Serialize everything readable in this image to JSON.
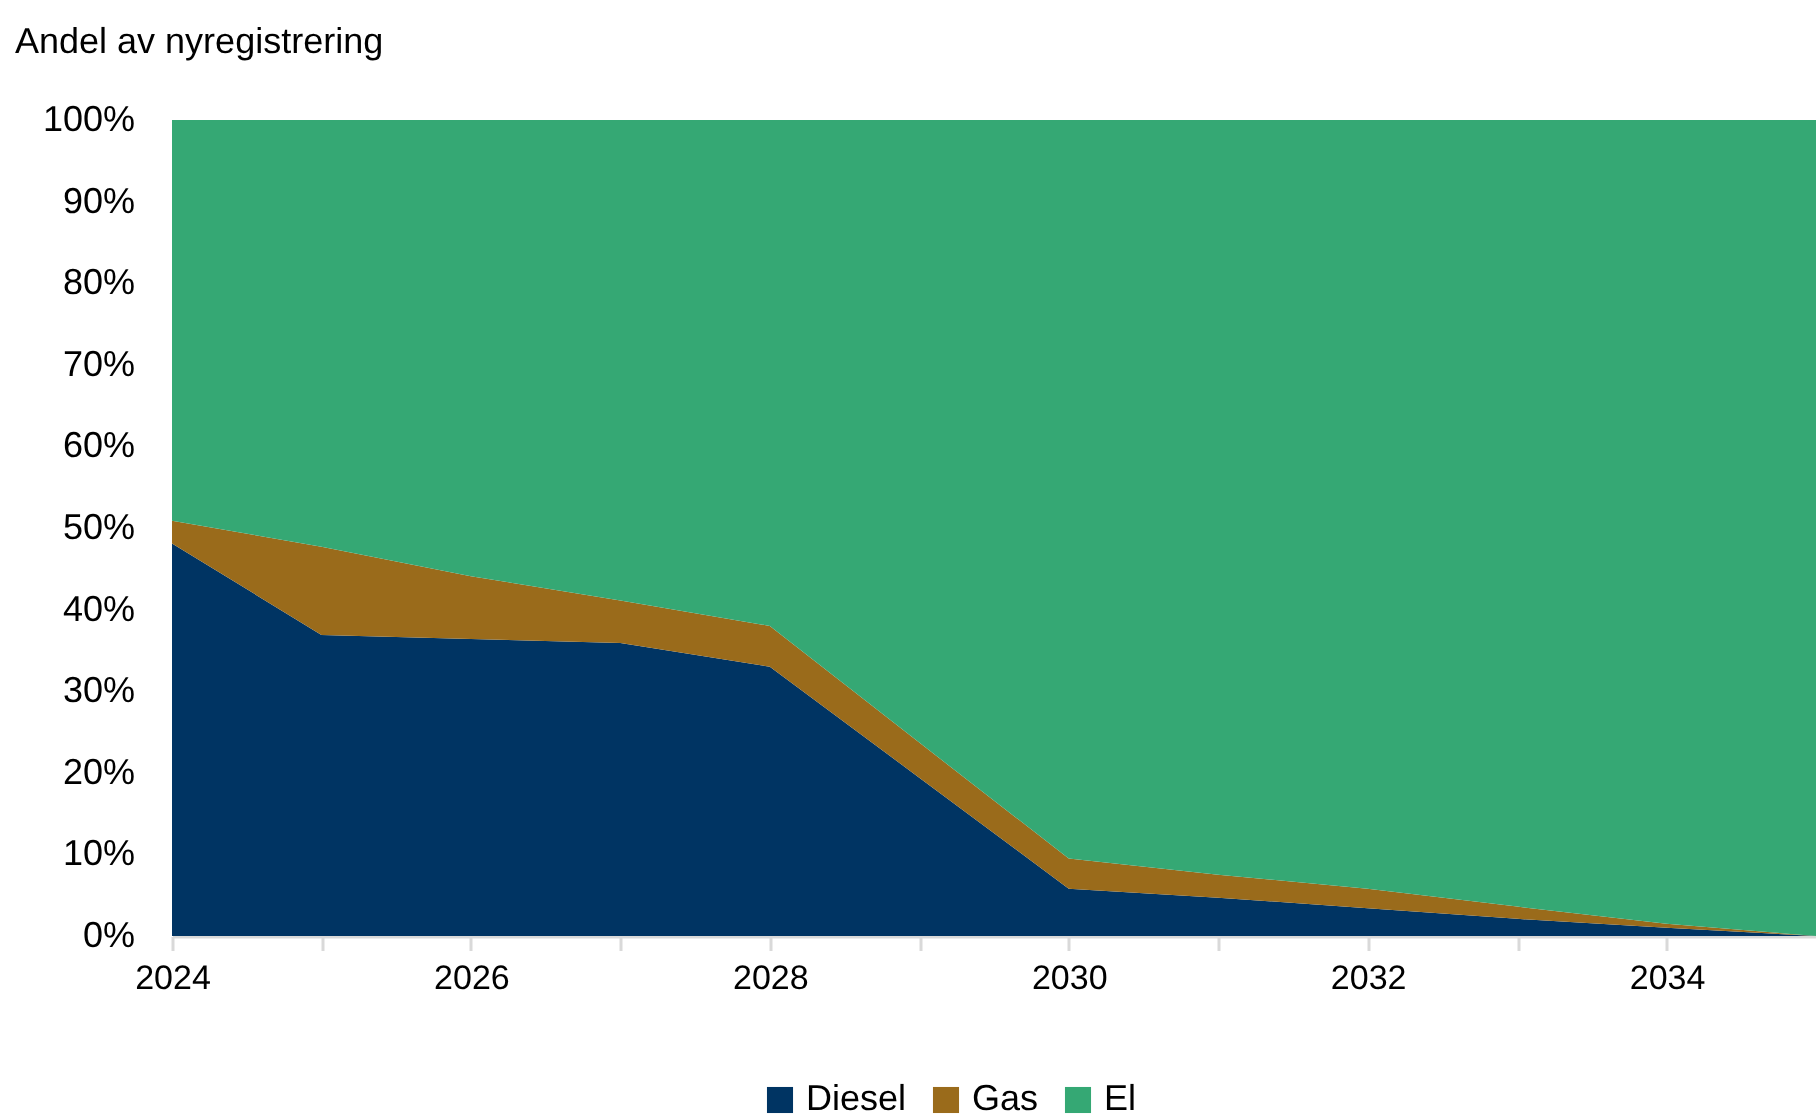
{
  "chart_data": {
    "type": "area",
    "stacked": true,
    "ylabel": "Andel av nyregistrering",
    "x": [
      2024,
      2025,
      2026,
      2027,
      2028,
      2029,
      2030,
      2031,
      2032,
      2033,
      2034,
      2035
    ],
    "series": [
      {
        "name": "Diesel",
        "color": "#003463",
        "values": [
          48.1,
          36.9,
          36.4,
          35.9,
          33.0,
          19.4,
          5.8,
          4.7,
          3.4,
          2.1,
          1.0,
          0
        ]
      },
      {
        "name": "Gas",
        "color": "#9a6b1b",
        "values": [
          2.8,
          10.8,
          7.7,
          5.2,
          5.0,
          4.3,
          3.7,
          2.8,
          2.4,
          1.5,
          0.5,
          0
        ]
      },
      {
        "name": "El",
        "color": "#35a874",
        "values": [
          49.1,
          52.3,
          55.9,
          58.9,
          62.0,
          76.3,
          90.5,
          92.5,
          94.2,
          96.4,
          98.5,
          100
        ]
      }
    ],
    "xlim": [
      2024,
      2035
    ],
    "xticks": [
      2024,
      {
        "value": 2025,
        "label": null
      },
      2026,
      {
        "value": 2027,
        "label": null
      },
      2028,
      {
        "value": 2029,
        "label": null
      },
      2030,
      {
        "value": 2031,
        "label": null
      },
      2032,
      {
        "value": 2033,
        "label": null
      },
      2034
    ],
    "ylim": [
      0,
      100
    ],
    "yticks": [
      {
        "value": 0,
        "label": "0%"
      },
      {
        "value": 10,
        "label": "10%"
      },
      {
        "value": 20,
        "label": "20%"
      },
      {
        "value": 30,
        "label": "30%"
      },
      {
        "value": 40,
        "label": "40%"
      },
      {
        "value": 50,
        "label": "50%"
      },
      {
        "value": 60,
        "label": "60%"
      },
      {
        "value": 70,
        "label": "70%"
      },
      {
        "value": 80,
        "label": "80%"
      },
      {
        "value": 90,
        "label": "90%"
      },
      {
        "value": 100,
        "label": "100%"
      }
    ],
    "grid": false,
    "legend": "bottom"
  }
}
